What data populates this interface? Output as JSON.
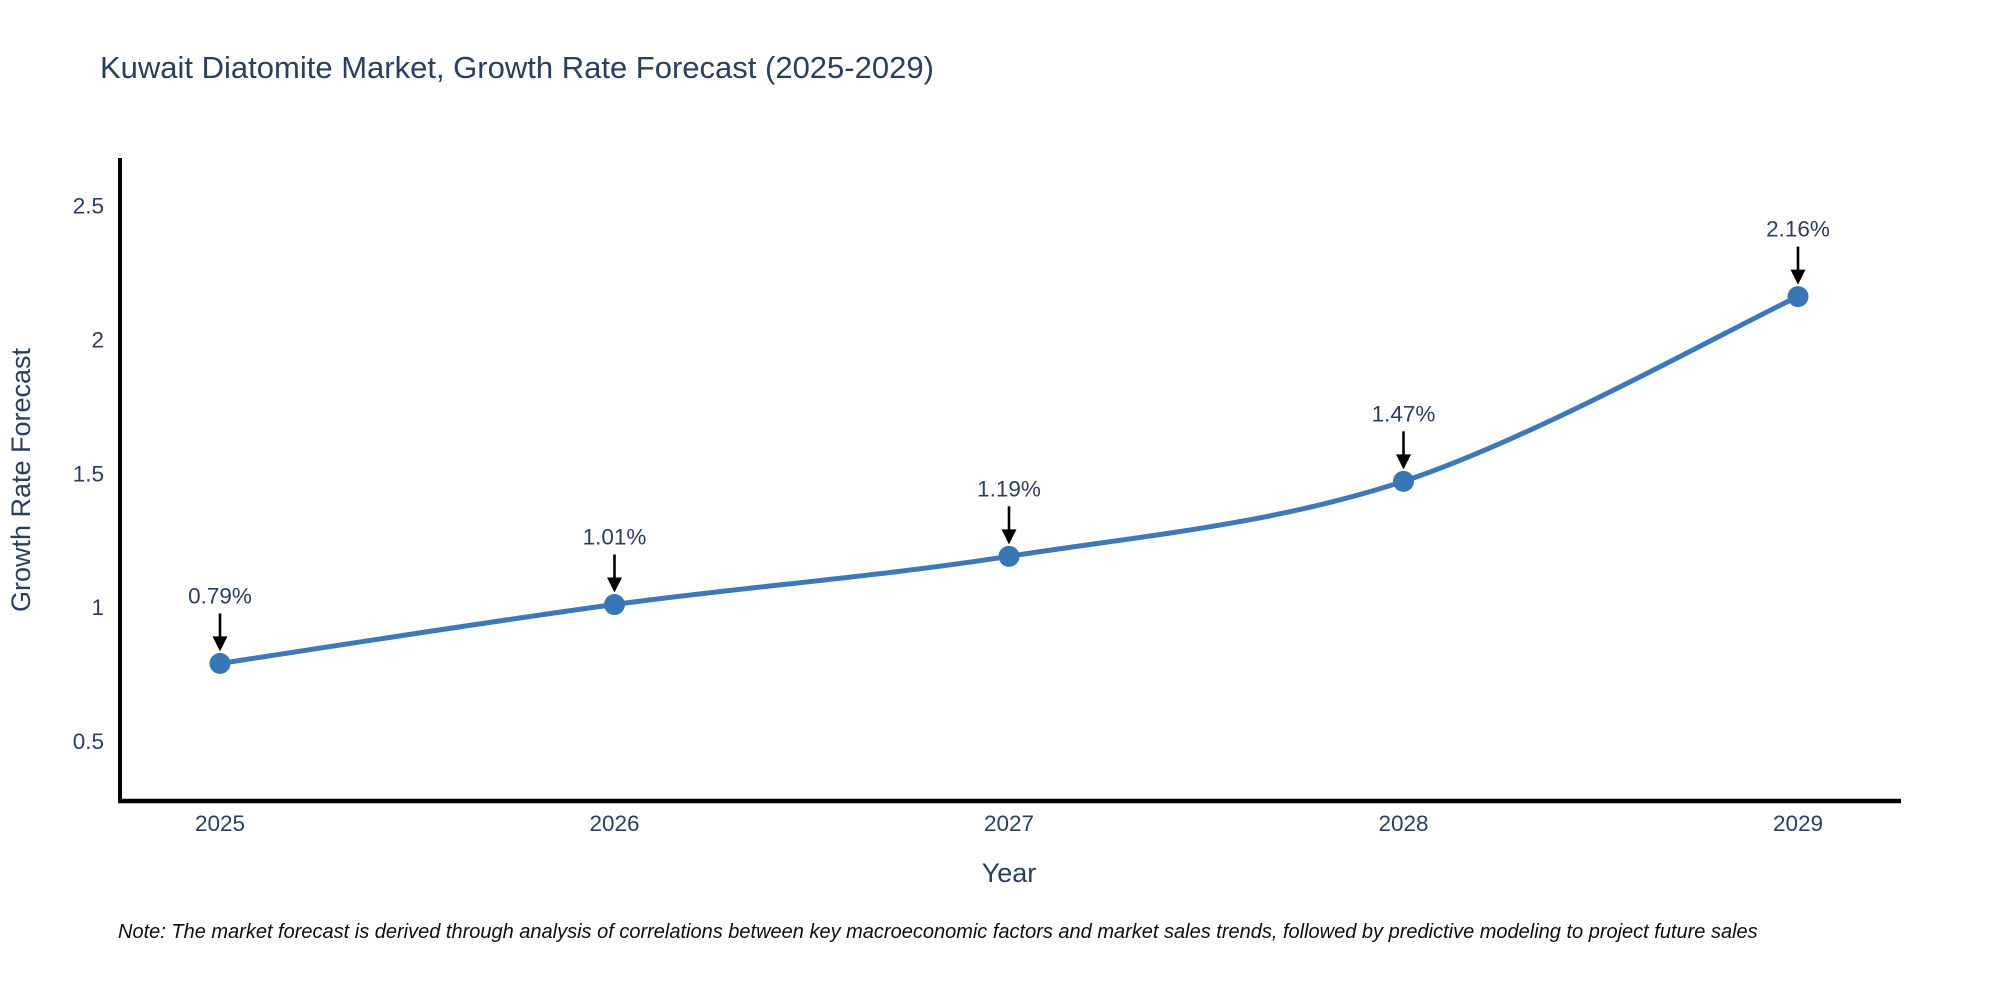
{
  "title": "Kuwait Diatomite Market, Growth Rate Forecast (2025-2029)",
  "note": "Note: The market forecast is derived through analysis of correlations between key macroeconomic factors and market sales trends, followed by predictive modeling to project future sales",
  "chart_data": {
    "type": "line",
    "title": "Kuwait Diatomite Market, Growth Rate Forecast (2025-2029)",
    "xlabel": "Year",
    "ylabel": "Growth Rate Forecast",
    "x": [
      2025,
      2026,
      2027,
      2028,
      2029
    ],
    "values": [
      0.79,
      1.01,
      1.19,
      1.47,
      2.16
    ],
    "point_labels": [
      "0.79%",
      "1.01%",
      "1.19%",
      "1.47%",
      "2.16%"
    ],
    "yticks": [
      0.5,
      1,
      1.5,
      2,
      2.5
    ],
    "ytick_labels": [
      "0.5",
      "1",
      "1.5",
      "2",
      "2.5"
    ],
    "ylim": [
      0.28,
      2.67
    ],
    "grid": false,
    "legend": false,
    "line_shape": "spline",
    "colors": {
      "line": "#3d79b8",
      "marker": "#3876b4",
      "axis": "#000000",
      "font": "#2a3f5f",
      "annotation_arrow": "#000000",
      "note_text": "#0d0d0d",
      "background": "#ffffff"
    }
  }
}
